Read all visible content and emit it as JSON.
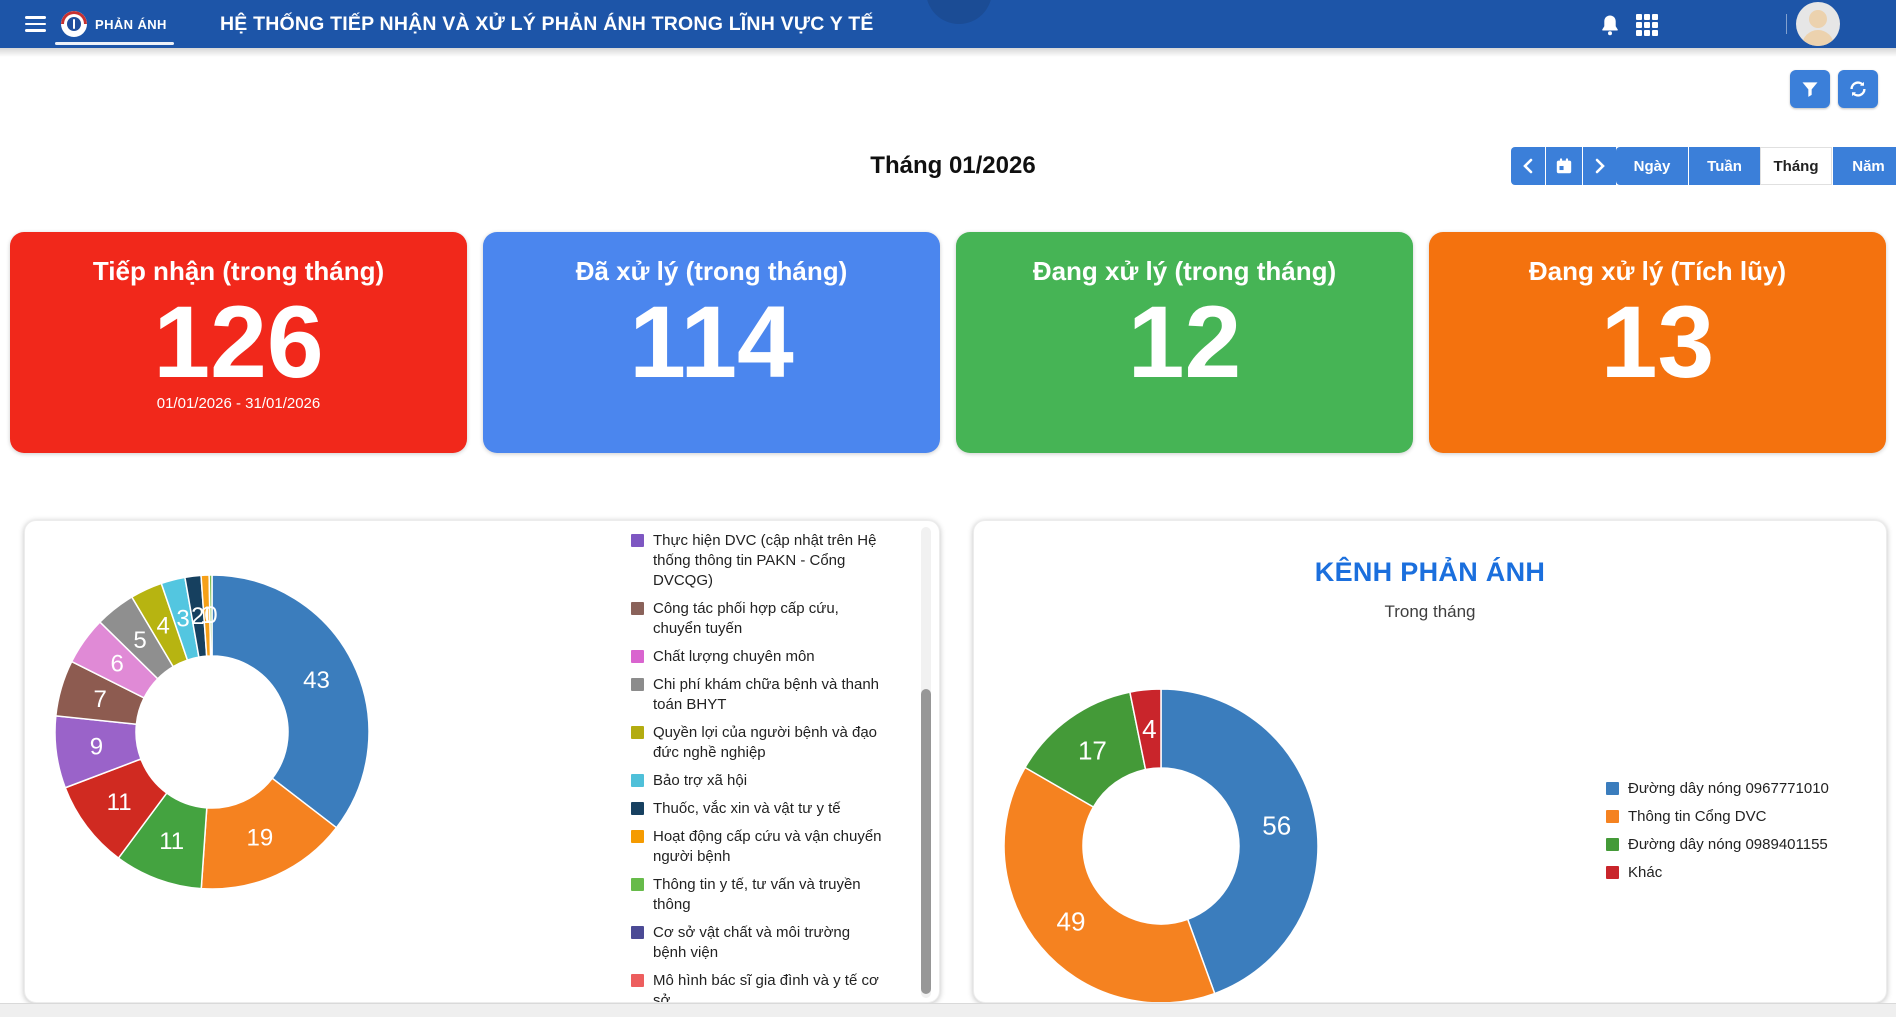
{
  "navbar": {
    "brand": "PHẢN ÁNH",
    "title": "HỆ THỐNG TIẾP NHẬN VÀ XỬ LÝ PHẢN ÁNH TRONG LĨNH VỰC Y TẾ"
  },
  "toolbar": {
    "period_label": "Tháng 01/2026",
    "views": [
      "Ngày",
      "Tuần",
      "Tháng",
      "Năm"
    ],
    "active_view": "Tháng"
  },
  "stat_cards": [
    {
      "title": "Tiếp nhận (trong tháng)",
      "value": "126",
      "subtitle": "01/01/2026 - 31/01/2026",
      "color": "#f1281b"
    },
    {
      "title": "Đã xử lý (trong tháng)",
      "value": "114",
      "subtitle": "",
      "color": "#4b86ee"
    },
    {
      "title": "Đang xử lý (trong tháng)",
      "value": "12",
      "subtitle": "",
      "color": "#46b455"
    },
    {
      "title": "Đang xử lý (Tích lũy)",
      "value": "13",
      "subtitle": "",
      "color": "#f4720e"
    }
  ],
  "chart_data": [
    {
      "type": "pie",
      "subtype": "donut",
      "title": "",
      "legend_position": "right",
      "values": [
        43,
        19,
        11,
        11,
        9,
        7,
        6,
        5,
        4,
        3,
        2,
        1,
        0
      ],
      "colors": [
        "#3b7dbd",
        "#f58220",
        "#44a340",
        "#d02a21",
        "#9a63c9",
        "#8d5b50",
        "#e08ad6",
        "#8f8f8f",
        "#b7b411",
        "#53c6e0",
        "#16405f",
        "#f6a018",
        "#7cbf4e"
      ],
      "legend_visible_items": [
        {
          "label": "Thực hiện DVC (cập nhật trên Hệ thống thông tin PAKN - Cổng DVCQG)",
          "color": "#7e57c2"
        },
        {
          "label": "Công tác phối hợp cấp cứu, chuyển tuyến",
          "color": "#8a625a"
        },
        {
          "label": "Chất lượng chuyên môn",
          "color": "#d964cf"
        },
        {
          "label": "Chi phí khám chữa bệnh và thanh toán BHYT",
          "color": "#8c8c8c"
        },
        {
          "label": "Quyền lợi của người bệnh và đạo đức nghề nghiệp",
          "color": "#b3ac10"
        },
        {
          "label": "Bảo trợ xã hội",
          "color": "#4fc0d9"
        },
        {
          "label": "Thuốc, vắc xin và vật tư y tế",
          "color": "#174060"
        },
        {
          "label": "Hoạt động cấp cứu và vận chuyển người bệnh",
          "color": "#f59b00"
        },
        {
          "label": "Thông tin y tế, tư vấn và truyền thông",
          "color": "#67bb4a"
        },
        {
          "label": "Cơ sở vật chất và môi trường bệnh viện",
          "color": "#4b4a95"
        },
        {
          "label": "Mô hình bác sĩ gia đình và y tế cơ sở",
          "color": "#ed5e5e"
        },
        {
          "label": "",
          "color": "#c3cfe6"
        }
      ]
    },
    {
      "type": "pie",
      "subtype": "donut",
      "title": "KÊNH PHẢN ÁNH",
      "subtitle": "Trong tháng",
      "legend_position": "right",
      "segments": [
        {
          "label": "Đường dây nóng 0967771010",
          "value": 56,
          "color": "#3b7dbd"
        },
        {
          "label": "Thông tin Cổng DVC",
          "value": 49,
          "color": "#f58220"
        },
        {
          "label": "Đường dây nóng 0989401155",
          "value": 17,
          "color": "#449a38"
        },
        {
          "label": "Khác",
          "value": 4,
          "color": "#c9252b"
        }
      ]
    }
  ]
}
